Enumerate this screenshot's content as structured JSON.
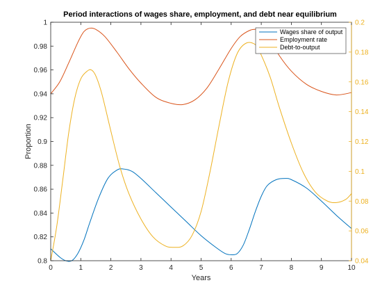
{
  "chart_data": {
    "type": "line",
    "title": "Period interactions of wages share, employment, and debt near equilibrium",
    "xlabel": "Years",
    "ylabel_left": "Proportion",
    "ylabel_right": "",
    "xlim": [
      0,
      10
    ],
    "ylim_left": [
      0.8,
      1.0
    ],
    "ylim_right": [
      0.04,
      0.2
    ],
    "x_ticks": [
      "0",
      "1",
      "2",
      "3",
      "4",
      "5",
      "6",
      "7",
      "8",
      "9",
      "10"
    ],
    "y_left_ticks": [
      "0.8",
      "0.82",
      "0.84",
      "0.86",
      "0.88",
      "0.9",
      "0.92",
      "0.94",
      "0.96",
      "0.98",
      "1"
    ],
    "y_right_ticks": [
      "0.04",
      "0.06",
      "0.08",
      "0.1",
      "0.12",
      "0.14",
      "0.16",
      "0.18",
      "0.2"
    ],
    "legend_position": "top-right",
    "grid": false,
    "series": [
      {
        "name": "Wages share of output",
        "axis": "left",
        "color": "#0072BD",
        "x": [
          0,
          0.3,
          0.5,
          0.7,
          0.9,
          1.1,
          1.3,
          1.6,
          1.9,
          2.2,
          2.4,
          2.7,
          3.0,
          3.5,
          4.0,
          4.5,
          5.0,
          5.5,
          5.8,
          6.0,
          6.2,
          6.4,
          6.6,
          6.8,
          7.0,
          7.2,
          7.5,
          7.8,
          8.0,
          8.5,
          9.0,
          9.5,
          10.0
        ],
        "y": [
          0.81,
          0.803,
          0.8,
          0.8,
          0.806,
          0.817,
          0.832,
          0.853,
          0.869,
          0.876,
          0.877,
          0.875,
          0.869,
          0.857,
          0.845,
          0.833,
          0.821,
          0.811,
          0.806,
          0.805,
          0.806,
          0.813,
          0.826,
          0.841,
          0.854,
          0.863,
          0.868,
          0.869,
          0.868,
          0.861,
          0.85,
          0.838,
          0.827
        ]
      },
      {
        "name": "Employment rate",
        "axis": "left",
        "color": "#D95319",
        "x": [
          0,
          0.3,
          0.6,
          0.9,
          1.1,
          1.3,
          1.5,
          1.8,
          2.2,
          2.6,
          3.0,
          3.5,
          4.0,
          4.4,
          4.8,
          5.2,
          5.6,
          6.0,
          6.3,
          6.6,
          6.8,
          7.0,
          7.3,
          7.6,
          8.0,
          8.5,
          9.0,
          9.5,
          10.0
        ],
        "y": [
          0.94,
          0.95,
          0.966,
          0.983,
          0.992,
          0.995,
          0.994,
          0.988,
          0.975,
          0.961,
          0.949,
          0.937,
          0.932,
          0.931,
          0.935,
          0.945,
          0.961,
          0.978,
          0.988,
          0.993,
          0.994,
          0.992,
          0.985,
          0.972,
          0.959,
          0.948,
          0.942,
          0.939,
          0.941
        ]
      },
      {
        "name": "Debt-to-output",
        "axis": "right",
        "color": "#EDB120",
        "x": [
          0,
          0.2,
          0.4,
          0.6,
          0.8,
          1.0,
          1.2,
          1.35,
          1.5,
          1.7,
          2.0,
          2.3,
          2.6,
          3.0,
          3.4,
          3.8,
          4.1,
          4.4,
          4.7,
          5.0,
          5.3,
          5.6,
          5.9,
          6.2,
          6.5,
          6.8,
          7.0,
          7.3,
          7.6,
          8.0,
          8.4,
          8.8,
          9.2,
          9.5,
          9.8,
          10.0
        ],
        "y": [
          0.04,
          0.063,
          0.094,
          0.126,
          0.149,
          0.162,
          0.167,
          0.168,
          0.164,
          0.152,
          0.127,
          0.103,
          0.085,
          0.068,
          0.056,
          0.05,
          0.049,
          0.05,
          0.057,
          0.073,
          0.1,
          0.131,
          0.16,
          0.179,
          0.186,
          0.185,
          0.178,
          0.163,
          0.143,
          0.119,
          0.099,
          0.086,
          0.08,
          0.079,
          0.081,
          0.085
        ]
      }
    ]
  }
}
